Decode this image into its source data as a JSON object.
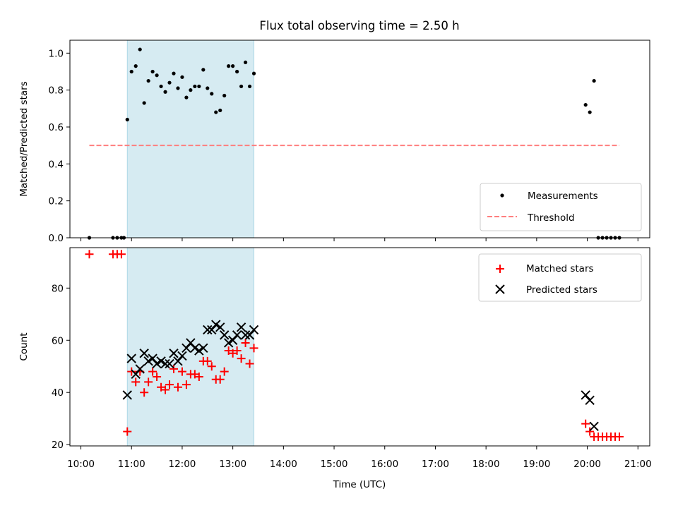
{
  "chart_data": {
    "title": "Flux total observing time = 2.50 h",
    "xlabel": "Time (UTC)",
    "x_ticks": [
      "10:00",
      "11:00",
      "12:00",
      "13:00",
      "14:00",
      "15:00",
      "16:00",
      "17:00",
      "18:00",
      "19:00",
      "20:00",
      "21:00"
    ],
    "highlight_span": {
      "start": "10:55",
      "end": "13:25"
    },
    "colors": {
      "highlight": "#add8e6",
      "measurements": "#000000",
      "threshold": "#ff7f7f",
      "matched": "#ff0000",
      "predicted": "#000000"
    },
    "panels": [
      {
        "type": "scatter",
        "ylabel": "Matched/Predicted stars",
        "ylim": [
          0,
          1.07
        ],
        "y_ticks": [
          "0.0",
          "0.2",
          "0.4",
          "0.6",
          "0.8",
          "1.0"
        ],
        "legend_position": "lower right",
        "series": [
          {
            "name": "Measurements",
            "marker": "dot",
            "points": [
              [
                "10:10",
                0
              ],
              [
                "10:38",
                0
              ],
              [
                "10:43",
                0
              ],
              [
                "10:48",
                0
              ],
              [
                "10:51",
                0
              ],
              [
                "10:55",
                0.64
              ],
              [
                "11:00",
                0.9
              ],
              [
                "11:05",
                0.93
              ],
              [
                "11:10",
                1.02
              ],
              [
                "11:15",
                0.73
              ],
              [
                "11:20",
                0.85
              ],
              [
                "11:25",
                0.9
              ],
              [
                "11:30",
                0.88
              ],
              [
                "11:35",
                0.82
              ],
              [
                "11:40",
                0.79
              ],
              [
                "11:45",
                0.84
              ],
              [
                "11:50",
                0.89
              ],
              [
                "11:55",
                0.81
              ],
              [
                "12:00",
                0.87
              ],
              [
                "12:05",
                0.76
              ],
              [
                "12:10",
                0.8
              ],
              [
                "12:15",
                0.82
              ],
              [
                "12:20",
                0.82
              ],
              [
                "12:25",
                0.91
              ],
              [
                "12:30",
                0.81
              ],
              [
                "12:35",
                0.78
              ],
              [
                "12:40",
                0.68
              ],
              [
                "12:45",
                0.69
              ],
              [
                "12:50",
                0.77
              ],
              [
                "12:55",
                0.93
              ],
              [
                "13:00",
                0.93
              ],
              [
                "13:05",
                0.9
              ],
              [
                "13:10",
                0.82
              ],
              [
                "13:15",
                0.95
              ],
              [
                "13:20",
                0.82
              ],
              [
                "13:25",
                0.89
              ],
              [
                "19:58",
                0.72
              ],
              [
                "20:03",
                0.68
              ],
              [
                "20:08",
                0.85
              ],
              [
                "20:13",
                0
              ],
              [
                "20:18",
                0
              ],
              [
                "20:23",
                0
              ],
              [
                "20:28",
                0
              ],
              [
                "20:33",
                0
              ],
              [
                "20:38",
                0
              ]
            ]
          },
          {
            "name": "Threshold",
            "style": "dashed",
            "points": [
              [
                "10:10",
                0.5
              ],
              [
                "20:38",
                0.5
              ]
            ]
          }
        ]
      },
      {
        "type": "scatter",
        "ylabel": "Count",
        "ylim": [
          19.5,
          95.5
        ],
        "y_ticks": [
          "20",
          "40",
          "60",
          "80"
        ],
        "legend_position": "upper right",
        "series": [
          {
            "name": "Matched stars",
            "marker": "plus",
            "points": [
              [
                "10:10",
                93
              ],
              [
                "10:38",
                93
              ],
              [
                "10:43",
                93
              ],
              [
                "10:48",
                93
              ],
              [
                "10:55",
                25
              ],
              [
                "11:00",
                48
              ],
              [
                "11:05",
                44
              ],
              [
                "11:10",
                48
              ],
              [
                "11:15",
                40
              ],
              [
                "11:20",
                44
              ],
              [
                "11:25",
                48
              ],
              [
                "11:30",
                46
              ],
              [
                "11:35",
                42
              ],
              [
                "11:40",
                41
              ],
              [
                "11:45",
                43
              ],
              [
                "11:50",
                49
              ],
              [
                "11:55",
                42
              ],
              [
                "12:00",
                48
              ],
              [
                "12:05",
                43
              ],
              [
                "12:10",
                47
              ],
              [
                "12:15",
                47
              ],
              [
                "12:20",
                46
              ],
              [
                "12:25",
                52
              ],
              [
                "12:30",
                52
              ],
              [
                "12:35",
                50
              ],
              [
                "12:40",
                45
              ],
              [
                "12:45",
                45
              ],
              [
                "12:50",
                48
              ],
              [
                "12:55",
                56
              ],
              [
                "13:00",
                55
              ],
              [
                "13:05",
                56
              ],
              [
                "13:10",
                53
              ],
              [
                "13:15",
                59
              ],
              [
                "13:20",
                51
              ],
              [
                "13:25",
                57
              ],
              [
                "19:58",
                28
              ],
              [
                "20:03",
                25
              ],
              [
                "20:08",
                23
              ],
              [
                "20:13",
                23
              ],
              [
                "20:18",
                23
              ],
              [
                "20:23",
                23
              ],
              [
                "20:28",
                23
              ],
              [
                "20:33",
                23
              ],
              [
                "20:38",
                23
              ]
            ]
          },
          {
            "name": "Predicted stars",
            "marker": "x",
            "points": [
              [
                "10:55",
                39
              ],
              [
                "11:00",
                53
              ],
              [
                "11:05",
                47
              ],
              [
                "11:10",
                49
              ],
              [
                "11:15",
                55
              ],
              [
                "11:20",
                52
              ],
              [
                "11:25",
                53
              ],
              [
                "11:30",
                51
              ],
              [
                "11:35",
                52
              ],
              [
                "11:40",
                51
              ],
              [
                "11:45",
                51
              ],
              [
                "11:50",
                55
              ],
              [
                "11:55",
                52
              ],
              [
                "12:00",
                54
              ],
              [
                "12:05",
                57
              ],
              [
                "12:10",
                59
              ],
              [
                "12:15",
                57
              ],
              [
                "12:20",
                56
              ],
              [
                "12:25",
                57
              ],
              [
                "12:30",
                64
              ],
              [
                "12:35",
                64
              ],
              [
                "12:40",
                66
              ],
              [
                "12:45",
                65
              ],
              [
                "12:50",
                62
              ],
              [
                "12:55",
                59
              ],
              [
                "13:00",
                60
              ],
              [
                "13:05",
                62
              ],
              [
                "13:10",
                65
              ],
              [
                "13:15",
                62
              ],
              [
                "13:20",
                62
              ],
              [
                "13:25",
                64
              ],
              [
                "19:58",
                39
              ],
              [
                "20:03",
                37
              ],
              [
                "20:08",
                27
              ]
            ]
          }
        ]
      }
    ]
  }
}
